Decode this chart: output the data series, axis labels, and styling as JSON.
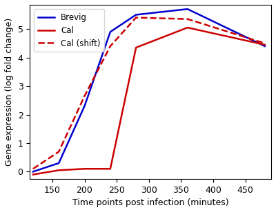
{
  "brevig_x": [
    120,
    160,
    200,
    240,
    280,
    360,
    480
  ],
  "brevig_y": [
    0.0,
    0.3,
    2.3,
    4.9,
    5.5,
    5.7,
    4.4
  ],
  "cal_x": [
    120,
    160,
    200,
    240,
    280,
    360,
    480
  ],
  "cal_y": [
    -0.1,
    0.05,
    0.1,
    0.1,
    4.35,
    5.05,
    4.45
  ],
  "cal_shift_x": [
    120,
    160,
    200,
    240,
    280,
    360,
    480
  ],
  "cal_shift_y": [
    0.1,
    0.7,
    2.65,
    4.4,
    5.4,
    5.35,
    4.5
  ],
  "brevig_color": "#0000cc",
  "cal_color": "#cc0000",
  "cal_shift_color": "#cc0000",
  "brevig_label": "Brevig",
  "cal_label": "Cal",
  "cal_shift_label": "Cal (shift)",
  "xlabel": "Time points post infection (minutes)",
  "ylabel": "Gene expression (log fold change)",
  "xlim": [
    115,
    490
  ],
  "ylim": [
    -0.25,
    5.85
  ],
  "xticks": [
    150,
    200,
    250,
    300,
    350,
    400,
    450
  ],
  "yticks": [
    0,
    1,
    2,
    3,
    4,
    5
  ],
  "linewidth": 1.8,
  "legend_fontsize": 8.5,
  "tick_fontsize": 9,
  "label_fontsize": 9
}
